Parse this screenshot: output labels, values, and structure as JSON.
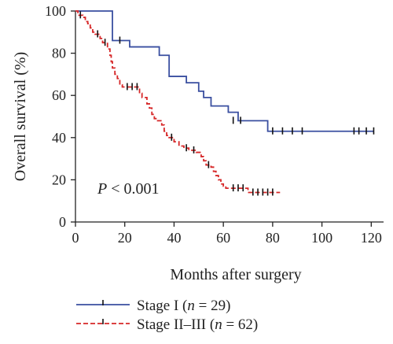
{
  "chart_data": {
    "type": "line",
    "subtype": "kaplan-meier",
    "title": "",
    "xlabel": "Months after surgery",
    "ylabel": "Overall survival (%)",
    "xlim": [
      0,
      125
    ],
    "ylim": [
      0,
      100
    ],
    "xticks": [
      0,
      20,
      40,
      60,
      80,
      100,
      120
    ],
    "yticks": [
      0,
      20,
      40,
      60,
      80,
      100
    ],
    "grid": false,
    "legend_position": "bottom",
    "annotation": {
      "italic": "P",
      "rest": " < 0.001"
    },
    "series": [
      {
        "name": "Stage I (n = 29)",
        "name_parts": {
          "prefix": "Stage I (",
          "italic": "n",
          "suffix": " = 29)"
        },
        "color": "#3a4fa0",
        "dash": "solid",
        "steps": [
          [
            0,
            100
          ],
          [
            15,
            86
          ],
          [
            22,
            83
          ],
          [
            34,
            79
          ],
          [
            38,
            69
          ],
          [
            45,
            66
          ],
          [
            50,
            62
          ],
          [
            52,
            59
          ],
          [
            55,
            55
          ],
          [
            62,
            52
          ],
          [
            66,
            48
          ],
          [
            78,
            43
          ],
          [
            121,
            43
          ]
        ],
        "censored": [
          [
            18,
            86
          ],
          [
            64,
            48
          ],
          [
            67,
            48
          ],
          [
            80,
            43
          ],
          [
            84,
            43
          ],
          [
            88,
            43
          ],
          [
            92,
            43
          ],
          [
            113,
            43
          ],
          [
            115,
            43
          ],
          [
            118,
            43
          ],
          [
            121,
            43
          ]
        ]
      },
      {
        "name": "Stage II–III (n = 62)",
        "name_parts": {
          "prefix": "Stage II–III (",
          "italic": "n",
          "suffix": " = 62)"
        },
        "color": "#d62728",
        "dash": "dashed",
        "steps": [
          [
            0,
            100
          ],
          [
            1,
            98
          ],
          [
            3,
            97
          ],
          [
            4,
            95
          ],
          [
            5,
            94
          ],
          [
            6,
            92
          ],
          [
            7,
            90
          ],
          [
            8,
            89
          ],
          [
            10,
            87
          ],
          [
            11,
            85
          ],
          [
            13,
            82
          ],
          [
            14,
            79
          ],
          [
            14.5,
            76
          ],
          [
            15,
            73
          ],
          [
            16,
            70
          ],
          [
            17,
            68
          ],
          [
            18,
            65
          ],
          [
            19,
            64
          ],
          [
            26,
            61
          ],
          [
            27,
            59
          ],
          [
            29,
            56
          ],
          [
            30,
            54
          ],
          [
            31,
            51
          ],
          [
            32,
            49
          ],
          [
            33,
            48
          ],
          [
            35,
            46
          ],
          [
            36,
            43
          ],
          [
            37,
            41
          ],
          [
            38,
            40
          ],
          [
            40,
            38
          ],
          [
            42,
            36
          ],
          [
            44,
            35
          ],
          [
            46,
            34
          ],
          [
            49,
            33
          ],
          [
            51,
            31
          ],
          [
            52,
            29
          ],
          [
            53,
            27
          ],
          [
            55,
            26
          ],
          [
            56,
            24
          ],
          [
            57,
            22
          ],
          [
            58,
            20
          ],
          [
            59,
            18
          ],
          [
            60,
            17
          ],
          [
            61,
            16
          ],
          [
            70,
            14
          ],
          [
            83,
            14
          ]
        ],
        "censored": [
          [
            2,
            98
          ],
          [
            9,
            89
          ],
          [
            12,
            85
          ],
          [
            21,
            64
          ],
          [
            23,
            64
          ],
          [
            25,
            64
          ],
          [
            39,
            40
          ],
          [
            45,
            35
          ],
          [
            48,
            34
          ],
          [
            54,
            27
          ],
          [
            64,
            16
          ],
          [
            66,
            16
          ],
          [
            68,
            16
          ],
          [
            72,
            14
          ],
          [
            74,
            14
          ],
          [
            76,
            14
          ],
          [
            78,
            14
          ],
          [
            80,
            14
          ]
        ]
      }
    ]
  }
}
